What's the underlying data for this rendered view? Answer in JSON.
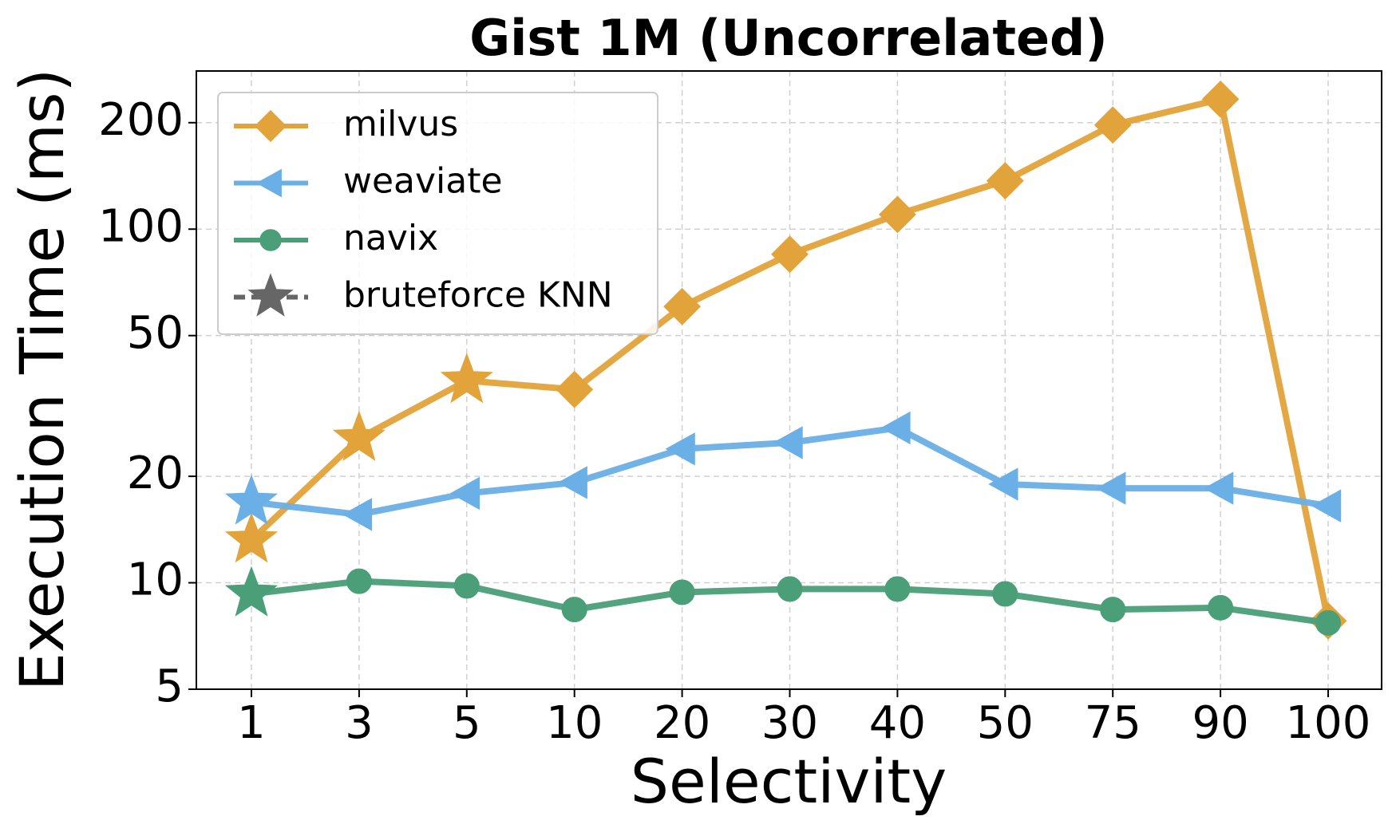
{
  "chart_data": {
    "type": "line",
    "title": "Gist 1M (Uncorrelated)",
    "x_label": "Selectivity",
    "y_label": "Execution Time (ms)",
    "categories": [
      "1",
      "3",
      "5",
      "10",
      "20",
      "30",
      "40",
      "50",
      "75",
      "90",
      "100"
    ],
    "y_log": true,
    "ylim": [
      5,
      280
    ],
    "yticks": [
      5,
      10,
      20,
      50,
      100,
      200
    ],
    "grid": true,
    "legend": "upper left",
    "series": [
      {
        "name": "milvus",
        "color": "#e1a33a",
        "linestyle": "solid",
        "markers": [
          "star",
          "star",
          "star",
          "diamond",
          "diamond",
          "diamond",
          "diamond",
          "diamond",
          "diamond",
          "diamond",
          "diamond"
        ],
        "marker": "diamond",
        "values": [
          13.2,
          25.6,
          37.3,
          35.2,
          60.4,
          84.9,
          110,
          137,
          197,
          233,
          7.8
        ]
      },
      {
        "name": "weaviate",
        "color": "#6aafe6",
        "linestyle": "solid",
        "markers": [
          "star",
          "triangle-left",
          "triangle-left",
          "triangle-left",
          "triangle-left",
          "triangle-left",
          "triangle-left",
          "triangle-left",
          "triangle-left",
          "triangle-left",
          "triangle-left"
        ],
        "marker": "triangle-left",
        "values": [
          16.9,
          15.6,
          17.9,
          19.2,
          23.9,
          24.9,
          27.4,
          19.0,
          18.5,
          18.5,
          16.5
        ]
      },
      {
        "name": "navix",
        "color": "#4a9e78",
        "linestyle": "solid",
        "markers": [
          "star",
          "circle",
          "circle",
          "circle",
          "circle",
          "circle",
          "circle",
          "circle",
          "circle",
          "circle",
          "circle"
        ],
        "marker": "circle",
        "values": [
          9.3,
          10.1,
          9.8,
          8.4,
          9.4,
          9.6,
          9.6,
          9.3,
          8.4,
          8.5,
          7.7
        ]
      },
      {
        "name": "bruteforce KNN",
        "color": "#666666",
        "linestyle": "dashed",
        "marker": "star",
        "values": [
          null,
          null,
          null,
          null,
          null,
          null,
          null,
          null,
          null,
          null,
          null
        ]
      }
    ]
  }
}
